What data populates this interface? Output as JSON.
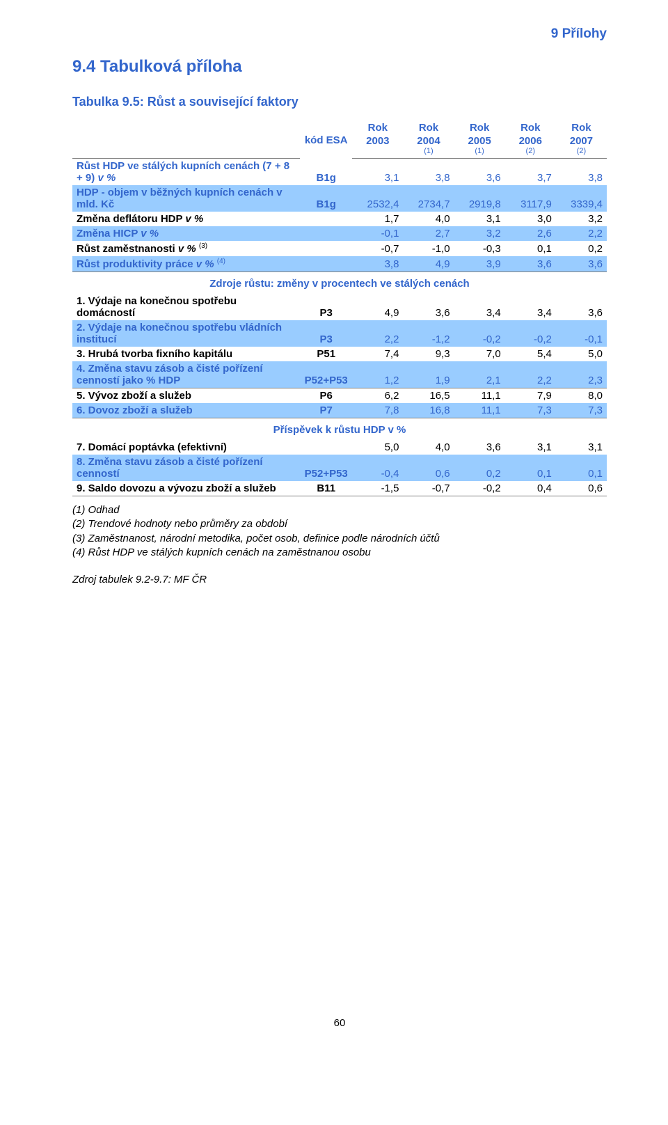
{
  "header_right": "9 Přílohy",
  "h2": "9.4  Tabulková příloha",
  "h3": "Tabulka 9.5: Růst a související faktory",
  "colors": {
    "accent": "#3366cc",
    "band": "#99ccff",
    "rule": "#808080",
    "bg": "#ffffff",
    "text": "#000000"
  },
  "table": {
    "head": {
      "kod": "kód ESA",
      "rok": "Rok",
      "years": [
        "2003",
        "2004",
        "2005",
        "2006",
        "2007"
      ],
      "subs": [
        "",
        "(1)",
        "(1)",
        "(2)",
        "(2)"
      ]
    },
    "rows_top": [
      {
        "label": "Růst HDP ve stálých kupních cenách (7 + 8 + 9) v %",
        "code": "B1g",
        "vals": [
          "3,1",
          "3,8",
          "3,6",
          "3,7",
          "3,8"
        ],
        "color": "blue",
        "italic_tail": "v %",
        "band": false
      },
      {
        "label": "HDP -  objem v běžných kupních cenách v mld. Kč",
        "code": "B1g",
        "vals": [
          "2532,4",
          "2734,7",
          "2919,8",
          "3117,9",
          "3339,4"
        ],
        "color": "blue",
        "band": true
      },
      {
        "label": "Změna deflátoru HDP v %",
        "code": "",
        "vals": [
          "1,7",
          "4,0",
          "3,1",
          "3,0",
          "3,2"
        ],
        "color": "black",
        "italic_tail": "v %",
        "band": false
      },
      {
        "label": "Změna HICP v %",
        "code": "",
        "vals": [
          "-0,1",
          "2,7",
          "3,2",
          "2,6",
          "2,2"
        ],
        "color": "blue",
        "italic_tail": "v %",
        "band": true
      },
      {
        "label": "Růst zaměstnanosti v %",
        "sup": "(3)",
        "code": "",
        "vals": [
          "-0,7",
          "-1,0",
          "-0,3",
          "0,1",
          "0,2"
        ],
        "color": "black",
        "italic_tail": "v %",
        "band": false
      },
      {
        "label": "Růst produktivity práce v %",
        "sup": "(4)",
        "code": "",
        "vals": [
          "3,8",
          "4,9",
          "3,9",
          "3,6",
          "3,6"
        ],
        "color": "blue",
        "italic_tail": "v %",
        "band": true,
        "bborder": true
      }
    ],
    "section1": "Zdroje růstu: změny v procentech ve stálých cenách",
    "rows_mid": [
      {
        "label": "1. Výdaje na konečnou spotřebu domácností",
        "code": "P3",
        "vals": [
          "4,9",
          "3,6",
          "3,4",
          "3,4",
          "3,6"
        ],
        "color": "black",
        "band": false
      },
      {
        "label": "2. Výdaje na konečnou spotřebu vládních institucí",
        "code": "P3",
        "vals": [
          "2,2",
          "-1,2",
          "-0,2",
          "-0,2",
          "-0,1"
        ],
        "color": "blue",
        "band": true
      },
      {
        "label": "3. Hrubá tvorba fixního kapitálu",
        "code": "P51",
        "vals": [
          "7,4",
          "9,3",
          "7,0",
          "5,4",
          "5,0"
        ],
        "color": "black",
        "band": false
      },
      {
        "label": "4. Změna stavu zásob a čisté pořízení cenností jako % HDP",
        "code": "P52+P53",
        "vals": [
          "1,2",
          "1,9",
          "2,1",
          "2,2",
          "2,3"
        ],
        "color": "blue",
        "band": true,
        "bborder": true
      },
      {
        "label": "5. Vývoz zboží a služeb",
        "code": "P6",
        "vals": [
          "6,2",
          "16,5",
          "11,1",
          "7,9",
          "8,0"
        ],
        "color": "black",
        "band": false
      },
      {
        "label": "6. Dovoz zboží a služeb",
        "code": "P7",
        "vals": [
          "7,8",
          "16,8",
          "11,1",
          "7,3",
          "7,3"
        ],
        "color": "blue",
        "band": true,
        "bborder": true
      }
    ],
    "section2": "Příspěvek k růstu HDP v %",
    "rows_bot": [
      {
        "label": "7. Domácí poptávka (efektivní)",
        "code": "",
        "vals": [
          "5,0",
          "4,0",
          "3,6",
          "3,1",
          "3,1"
        ],
        "color": "black",
        "band": false
      },
      {
        "label": "8. Změna stavu zásob a čisté pořízení cenností",
        "code": "P52+P53",
        "vals": [
          "-0,4",
          "0,6",
          "0,2",
          "0,1",
          "0,1"
        ],
        "color": "blue",
        "band": true
      },
      {
        "label": "9. Saldo dovozu a vývozu zboží a služeb",
        "code": "B11",
        "vals": [
          "-1,5",
          "-0,7",
          "-0,2",
          "0,4",
          "0,6"
        ],
        "color": "black",
        "band": false,
        "bborder": true
      }
    ]
  },
  "notes": [
    "(1) Odhad",
    "(2) Trendové hodnoty nebo průměry za období",
    "(3) Zaměstnanost, národní metodika, počet osob, definice podle národních účtů",
    "(4) Růst HDP ve stálých kupních cenách na zaměstnanou osobu"
  ],
  "source": "Zdroj tabulek 9.2-9.7: MF ČR",
  "page_number": "60"
}
